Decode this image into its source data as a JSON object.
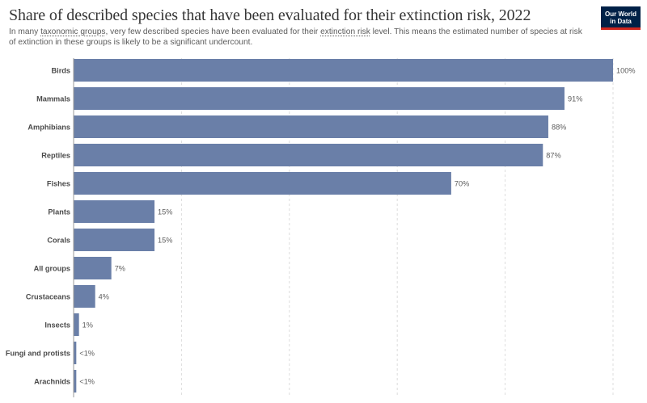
{
  "header": {
    "title": "Share of described species that have been evaluated for their extinction risk, 2022",
    "subtitle_parts": [
      "In many ",
      "taxonomic groups",
      ", very few described species have been evaluated for their ",
      "extinction risk",
      " level. This means the estimated number of species at risk of extinction in these groups is likely to be a significant undercount."
    ]
  },
  "logo": {
    "line1": "Our World",
    "line2": "in Data"
  },
  "colors": {
    "bar": "#6a7fa8",
    "grid": "#dddddd",
    "logo_bg": "#002147",
    "logo_accent": "#ce261e"
  },
  "chart_data": {
    "type": "bar",
    "orientation": "horizontal",
    "categories": [
      "Birds",
      "Mammals",
      "Amphibians",
      "Reptiles",
      "Fishes",
      "Plants",
      "Corals",
      "All groups",
      "Crustaceans",
      "Insects",
      "Fungi and protists",
      "Arachnids"
    ],
    "values": [
      100,
      91,
      88,
      87,
      70,
      15,
      15,
      7,
      4,
      1,
      0.5,
      0.5
    ],
    "value_labels": [
      "100%",
      "91%",
      "88%",
      "87%",
      "70%",
      "15%",
      "15%",
      "7%",
      "4%",
      "1%",
      "<1%",
      "<1%"
    ],
    "unit": "%",
    "xlim": [
      0,
      100
    ],
    "grid": "vertical dashed",
    "gridlines": [
      0,
      20,
      40,
      60,
      80,
      100
    ]
  }
}
